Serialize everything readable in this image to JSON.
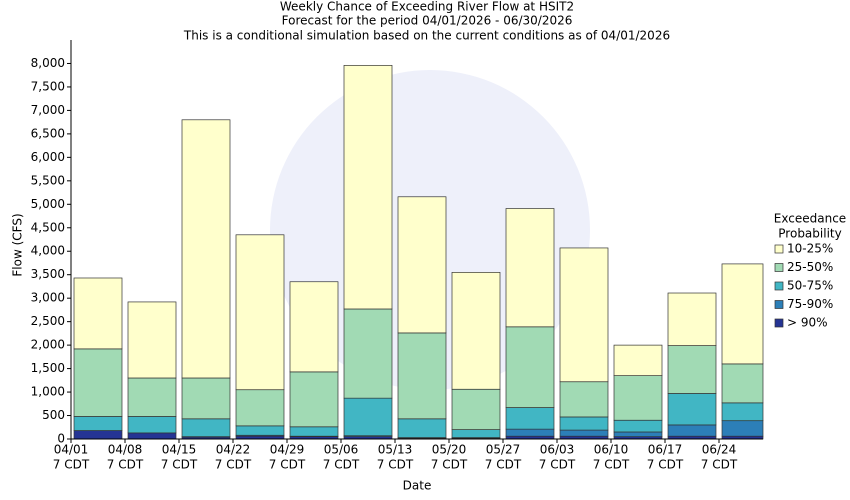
{
  "chart_data": {
    "type": "stacked_bar",
    "title": "Weekly Chance of Exceeding River Flow at HSIT2",
    "subtitle": [
      "Forecast for the period 04/01/2026 - 06/30/2026",
      "This is a conditional simulation based on the current conditions as of 04/01/2026"
    ],
    "x_label": "Date",
    "y_label": "Flow (CFS)",
    "categories": [
      "04/01",
      "04/08",
      "04/15",
      "04/22",
      "04/29",
      "05/06",
      "05/13",
      "05/20",
      "05/27",
      "06/03",
      "06/10",
      "06/17",
      "06/24"
    ],
    "category_sublabel": "7 CDT",
    "legend_title": [
      "Exceedance",
      "Probability"
    ],
    "series": [
      {
        "name": "> 90%",
        "color": "#253494",
        "values": [
          180,
          130,
          40,
          60,
          50,
          50,
          20,
          20,
          60,
          60,
          50,
          60,
          60
        ]
      },
      {
        "name": "75-90%",
        "color": "#2c7fb8",
        "values": [
          0,
          0,
          10,
          20,
          10,
          20,
          10,
          10,
          150,
          130,
          100,
          240,
          330
        ]
      },
      {
        "name": "50-75%",
        "color": "#41b6c4",
        "values": [
          300,
          350,
          380,
          200,
          200,
          800,
          400,
          170,
          460,
          280,
          250,
          670,
          380
        ]
      },
      {
        "name": "25-50%",
        "color": "#a1dab4",
        "values": [
          1440,
          820,
          870,
          770,
          1170,
          1900,
          1830,
          860,
          1720,
          750,
          950,
          1020,
          830
        ]
      },
      {
        "name": "10-25%",
        "color": "#ffffcc",
        "values": [
          1510,
          1620,
          5500,
          3300,
          1920,
          5190,
          2900,
          2490,
          2520,
          2850,
          650,
          1120,
          2130
        ]
      }
    ],
    "ylim": [
      0,
      8500
    ],
    "yticks": [
      0,
      500,
      {
        "value": 1000,
        "label": "1,000"
      },
      {
        "value": 1500,
        "label": "1,500"
      },
      {
        "value": 2000,
        "label": "2,000"
      },
      {
        "value": 2500,
        "label": "2,500"
      },
      {
        "value": 3000,
        "label": "3,000"
      },
      {
        "value": 3500,
        "label": "3,500"
      },
      {
        "value": 4000,
        "label": "4,000"
      },
      {
        "value": 4500,
        "label": "4,500"
      },
      {
        "value": 5000,
        "label": "5,000"
      },
      {
        "value": 5500,
        "label": "5,500"
      },
      {
        "value": 6000,
        "label": "6,000"
      },
      {
        "value": 6500,
        "label": "6,500"
      },
      {
        "value": 7000,
        "label": "7,000"
      },
      {
        "value": 7500,
        "label": "7,500"
      },
      {
        "value": 8000,
        "label": "8,000"
      }
    ],
    "grid": false
  }
}
